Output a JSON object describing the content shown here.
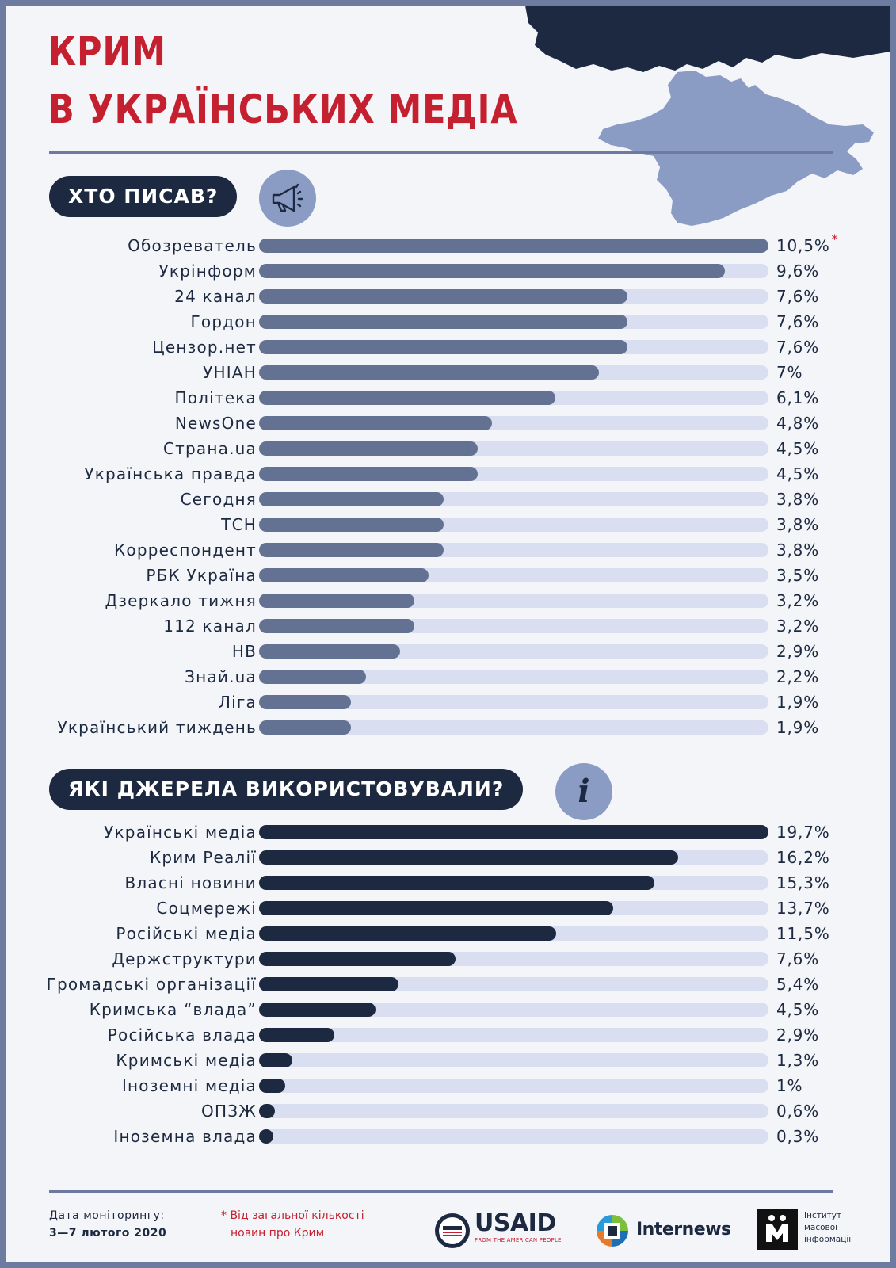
{
  "title": {
    "line1": "КРИМ",
    "line2": "В УКРАЇНСЬКИХ МЕДІА"
  },
  "colors": {
    "accent": "#c4202f",
    "navy": "#1c2940",
    "slate": "#637193",
    "track": "#d9dff0",
    "map_light": "#8b9cc4"
  },
  "section1": {
    "heading": "ХТО ПИСАВ?",
    "icon": "megaphone-icon"
  },
  "section2": {
    "heading": "ЯКІ ДЖЕРЕЛА ВИКОРИСТОВУВАЛИ?",
    "icon": "info-icon",
    "icon_glyph": "i"
  },
  "chart_data": [
    {
      "type": "bar",
      "orientation": "horizontal",
      "title": "ХТО ПИСАВ?",
      "xlim": [
        0,
        10.5
      ],
      "categories": [
        "Обозреватель",
        "Укрінформ",
        "24 канал",
        "Гордон",
        "Цензор.нет",
        "УНІАН",
        "Політека",
        "NewsOne",
        "Страна.ua",
        "Українська правда",
        "Сегодня",
        "ТСН",
        "Корреспондент",
        "РБК Україна",
        "Дзеркало тижня",
        "112 канал",
        "НВ",
        "Знай.ua",
        "Ліга",
        "Український тиждень"
      ],
      "values": [
        10.5,
        9.6,
        7.6,
        7.6,
        7.6,
        7,
        6.1,
        4.8,
        4.5,
        4.5,
        3.8,
        3.8,
        3.8,
        3.5,
        3.2,
        3.2,
        2.9,
        2.2,
        1.9,
        1.9
      ],
      "labels": [
        "10,5%",
        "9,6%",
        "7,6%",
        "7,6%",
        "7,6%",
        "7%",
        "6,1%",
        "4,8%",
        "4,5%",
        "4,5%",
        "3,8%",
        "3,8%",
        "3,8%",
        "3,5%",
        "3,2%",
        "3,2%",
        "2,9%",
        "2,2%",
        "1,9%",
        "1,9%"
      ],
      "annotation": "*"
    },
    {
      "type": "bar",
      "orientation": "horizontal",
      "title": "ЯКІ ДЖЕРЕЛА ВИКОРИСТОВУВАЛИ?",
      "xlim": [
        0,
        19.7
      ],
      "categories": [
        "Українські медіа",
        "Крим Реалії",
        "Власні новини",
        "Соцмережі",
        "Російські медіа",
        "Держструктури",
        "Громадські організації",
        "Кримська “влада”",
        "Російська влада",
        "Кримські медіа",
        "Іноземні медіа",
        "ОПЗЖ",
        "Іноземна влада"
      ],
      "values": [
        19.7,
        16.2,
        15.3,
        13.7,
        11.5,
        7.6,
        5.4,
        4.5,
        2.9,
        1.3,
        1,
        0.6,
        0.3
      ],
      "labels": [
        "19,7%",
        "16,2%",
        "15,3%",
        "13,7%",
        "11,5%",
        "7,6%",
        "5,4%",
        "4,5%",
        "2,9%",
        "1,3%",
        "1%",
        "0,6%",
        "0,3%"
      ]
    }
  ],
  "footer": {
    "date_label": "Дата моніторингу:",
    "date_value": "3—7 лютого 2020",
    "note_star": "*",
    "note_line1": "Від загальної кількості",
    "note_line2": "новин про Крим",
    "usaid": "USAID",
    "usaid_sub": "FROM THE AMERICAN PEOPLE",
    "internews": "Internews",
    "imi_line1": "Інститут",
    "imi_line2": "масової",
    "imi_line3": "інформації"
  }
}
